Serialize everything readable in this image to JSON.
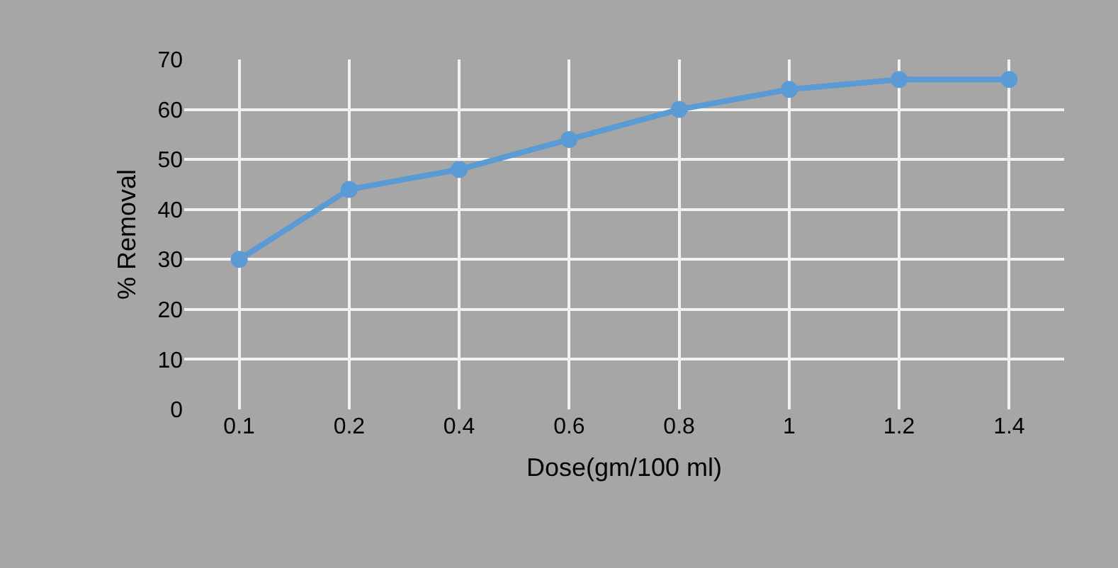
{
  "chart_data": {
    "type": "line",
    "xlabel": "Dose(gm/100 ml)",
    "ylabel": "% Removal",
    "categories": [
      "0.1",
      "0.2",
      "0.4",
      "0.6",
      "0.8",
      "1",
      "1.2",
      "1.4"
    ],
    "series": [
      {
        "color": "#5b9bd5",
        "values": [
          30,
          44,
          48,
          54,
          60,
          64,
          66,
          66
        ]
      }
    ],
    "ylim": [
      0,
      70
    ],
    "yticks": [
      0,
      10,
      20,
      30,
      40,
      50,
      60,
      70
    ],
    "grid": true,
    "marker": "circle",
    "line_style": "solid"
  }
}
